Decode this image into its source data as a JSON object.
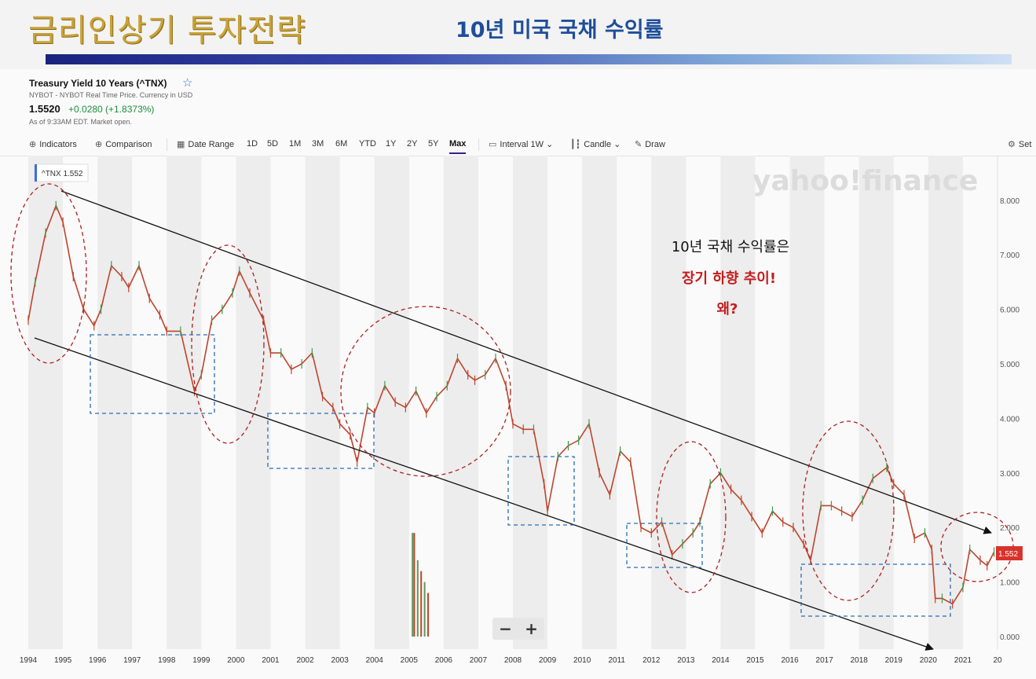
{
  "slide": {
    "title": "금리인상기 투자전략",
    "subtitle": "10년 미국 국채 수익률"
  },
  "quote": {
    "name": "Treasury Yield 10 Years (^TNX)",
    "exchange": "NYBOT - NYBOT Real Time Price. Currency in USD",
    "price": "1.5520",
    "change": "+0.0280 (+1.8373%)",
    "as_of": "As of 9:33AM EDT. Market open."
  },
  "toolbar": {
    "indicators": "Indicators",
    "comparison": "Comparison",
    "date_range": "Date Range",
    "ranges": [
      "1D",
      "5D",
      "1M",
      "3M",
      "6M",
      "YTD",
      "1Y",
      "2Y",
      "5Y",
      "Max"
    ],
    "active_range": "Max",
    "interval": "Interval",
    "interval_value": "1W",
    "chart_type": "Candle",
    "draw": "Draw",
    "settings": "Set"
  },
  "zoom": {
    "minus": "−",
    "plus": "+"
  },
  "chart_data": {
    "type": "line",
    "series_label": "^TNX 1.552",
    "watermark": "yahoo!finance",
    "last_price_tag": "1.552",
    "y_ticks": [
      "8.000",
      "7.000",
      "6.000",
      "5.000",
      "4.000",
      "3.000",
      "2.000",
      "1.000",
      "0.000"
    ],
    "x_ticks": [
      "1994",
      "1995",
      "1996",
      "1997",
      "1998",
      "1999",
      "2000",
      "2001",
      "2002",
      "2003",
      "2004",
      "2005",
      "2006",
      "2007",
      "2008",
      "2009",
      "2010",
      "2011",
      "2012",
      "2013",
      "2014",
      "2015",
      "2016",
      "2017",
      "2018",
      "2019",
      "2020",
      "2021",
      "20"
    ],
    "ylim": [
      0,
      8.5
    ],
    "xlim": [
      1994.0,
      2022.0
    ],
    "series": [
      {
        "x": [
          1994.0,
          1994.2,
          1994.5,
          1994.8,
          1995.0,
          1995.3,
          1995.6,
          1995.9,
          1996.1,
          1996.4,
          1996.7,
          1996.9,
          1997.2,
          1997.5,
          1997.8,
          1998.0,
          1998.4,
          1998.8,
          1999.0,
          1999.3,
          1999.6,
          1999.9,
          2000.1,
          2000.4,
          2000.8,
          2001.0,
          2001.3,
          2001.6,
          2001.9,
          2002.2,
          2002.5,
          2002.8,
          2003.0,
          2003.3,
          2003.5,
          2003.8,
          2004.0,
          2004.3,
          2004.6,
          2004.9,
          2005.2,
          2005.5,
          2005.8,
          2006.1,
          2006.4,
          2006.7,
          2006.9,
          2007.2,
          2007.5,
          2007.8,
          2008.0,
          2008.3,
          2008.6,
          2008.9,
          2009.0,
          2009.3,
          2009.6,
          2009.9,
          2010.2,
          2010.5,
          2010.8,
          2011.1,
          2011.4,
          2011.7,
          2012.0,
          2012.3,
          2012.6,
          2012.9,
          2013.2,
          2013.4,
          2013.7,
          2014.0,
          2014.3,
          2014.6,
          2014.9,
          2015.2,
          2015.5,
          2015.8,
          2016.1,
          2016.4,
          2016.6,
          2016.9,
          2017.2,
          2017.5,
          2017.8,
          2018.1,
          2018.4,
          2018.8,
          2019.0,
          2019.3,
          2019.6,
          2019.9,
          2020.1,
          2020.2,
          2020.4,
          2020.7,
          2021.0,
          2021.2,
          2021.5,
          2021.7,
          2021.9
        ],
        "y": [
          5.8,
          6.5,
          7.4,
          7.9,
          7.6,
          6.6,
          6.0,
          5.7,
          6.0,
          6.8,
          6.6,
          6.4,
          6.8,
          6.2,
          5.9,
          5.6,
          5.6,
          4.5,
          4.8,
          5.8,
          6.0,
          6.3,
          6.7,
          6.3,
          5.8,
          5.2,
          5.2,
          4.9,
          5.0,
          5.2,
          4.4,
          4.2,
          3.9,
          3.7,
          3.2,
          4.2,
          4.1,
          4.6,
          4.3,
          4.2,
          4.5,
          4.1,
          4.4,
          4.6,
          5.1,
          4.8,
          4.7,
          4.8,
          5.1,
          4.6,
          3.9,
          3.8,
          3.8,
          2.8,
          2.3,
          3.3,
          3.5,
          3.6,
          3.9,
          3.0,
          2.6,
          3.4,
          3.2,
          2.0,
          1.9,
          2.1,
          1.5,
          1.7,
          1.9,
          2.1,
          2.8,
          3.0,
          2.7,
          2.5,
          2.2,
          1.9,
          2.3,
          2.1,
          2.0,
          1.7,
          1.4,
          2.4,
          2.4,
          2.3,
          2.2,
          2.5,
          2.9,
          3.1,
          2.8,
          2.6,
          1.8,
          1.9,
          1.6,
          0.7,
          0.7,
          0.6,
          0.9,
          1.6,
          1.4,
          1.3,
          1.55
        ]
      },
      {
        "type": "bar",
        "x": [
          2005.1,
          2005.15,
          2005.25,
          2005.35,
          2005.45,
          2005.55
        ],
        "y": [
          1.9,
          1.9,
          1.4,
          1.2,
          1.0,
          0.8
        ]
      }
    ],
    "annotations": {
      "headline": "10년 국채 수익률은",
      "emphasis": "장기 하향 추이!",
      "question": "왜?"
    }
  }
}
